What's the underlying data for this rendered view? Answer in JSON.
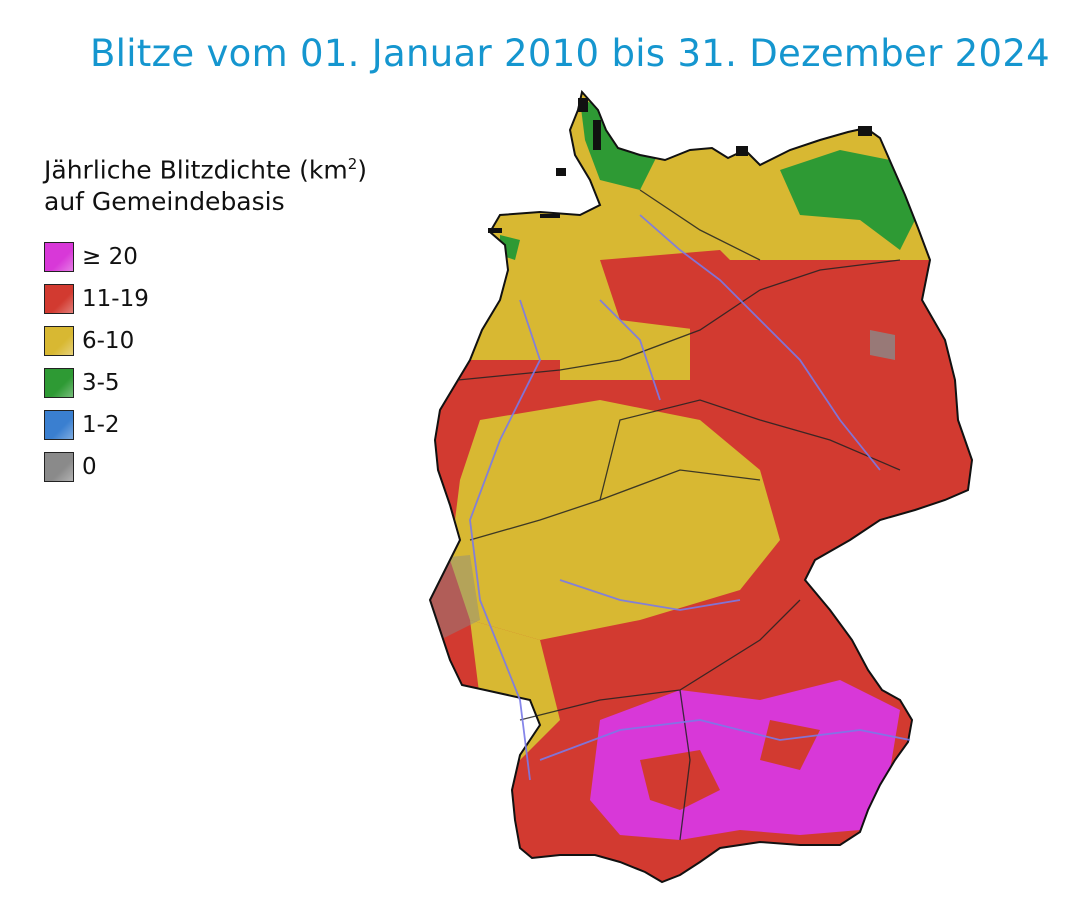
{
  "title": "Blitze vom 01. Januar 2010 bis 31. Dezember 2024",
  "legend": {
    "title_line1": "Jährliche Blitzdichte (km",
    "title_sup": "2",
    "title_line1_end": ")",
    "title_line2": "auf Gemeindebasis",
    "items": [
      {
        "label": "≥ 20",
        "color": "#d838d8"
      },
      {
        "label": "11-19",
        "color": "#d23a30"
      },
      {
        "label": "6-10",
        "color": "#d8b832"
      },
      {
        "label": "3-5",
        "color": "#2e9a34"
      },
      {
        "label": "1-2",
        "color": "#3a7fd0"
      },
      {
        "label": "0",
        "color": "#8a8a8a"
      }
    ]
  },
  "map": {
    "region": "Deutschland",
    "pattern": "Nord: niedrige Dichte (grün/gelb), Mitte: rot/gelb, Süd (Bayern/Baden-Württemberg): hohe Dichte (rot/magenta)"
  }
}
